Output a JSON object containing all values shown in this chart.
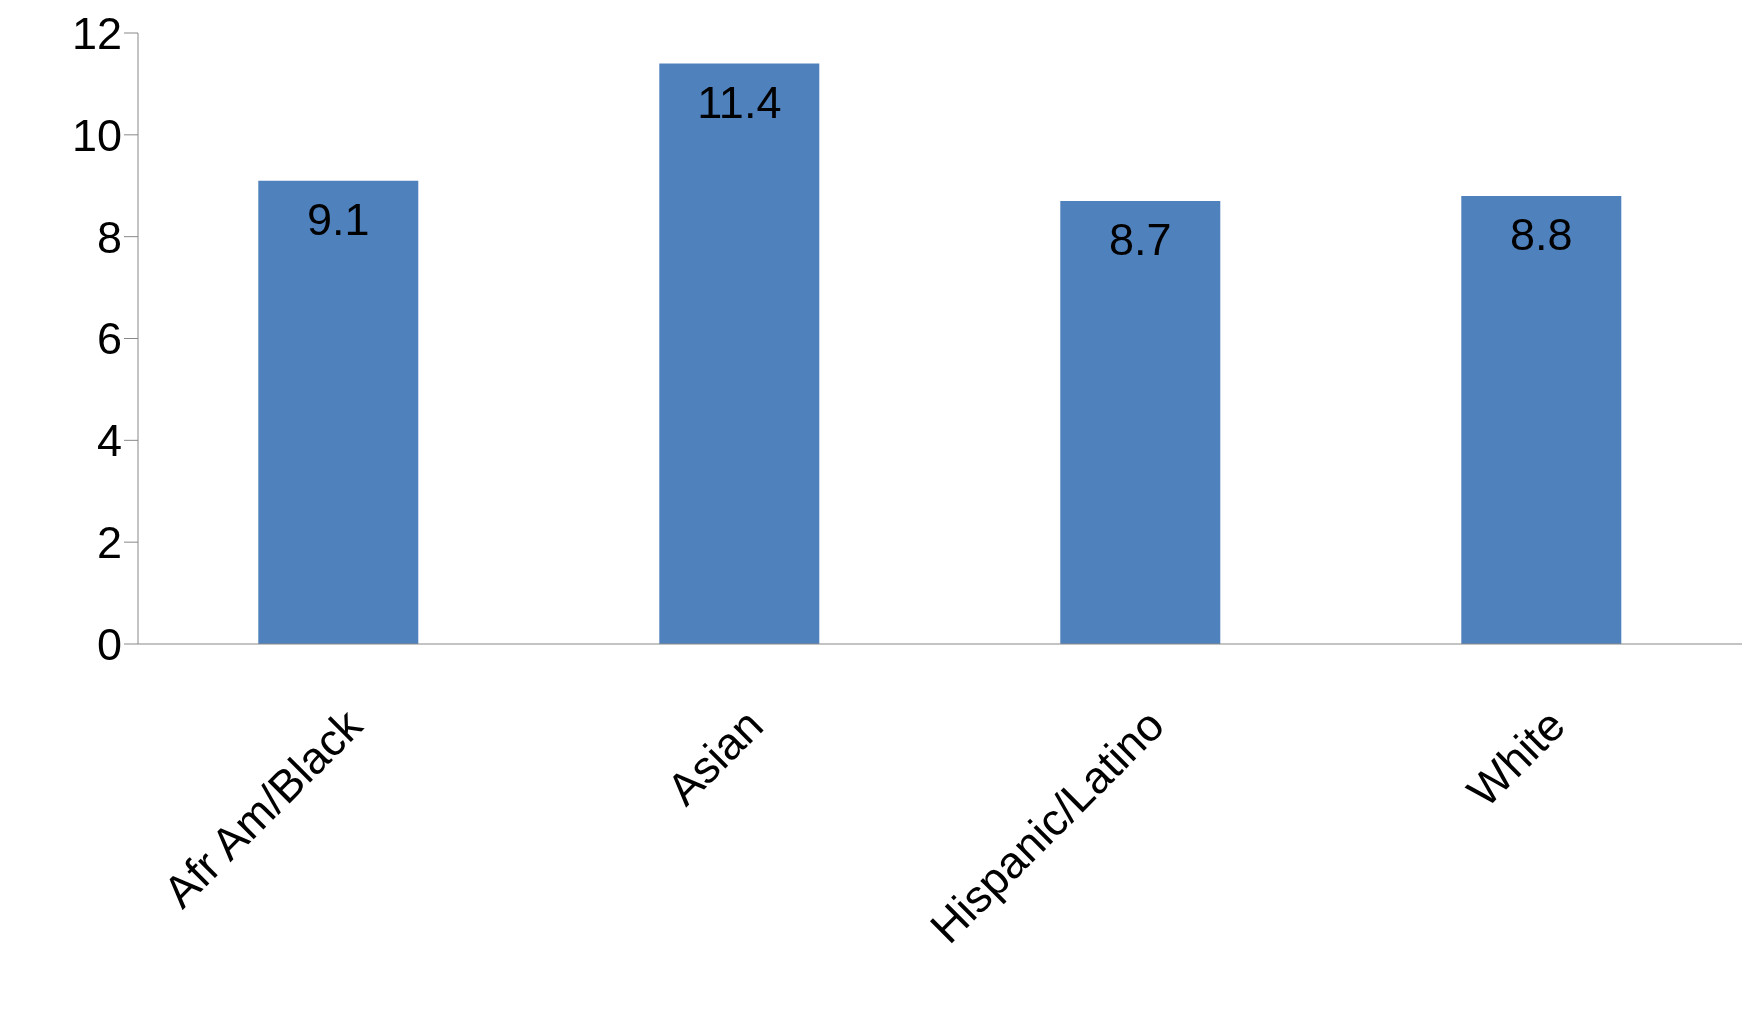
{
  "chart_data": {
    "type": "bar",
    "categories": [
      "Afr Am/Black",
      "Asian",
      "Hispanic/Latino",
      "White"
    ],
    "values": [
      9.1,
      11.4,
      8.7,
      8.8
    ],
    "color": "#4f81bd",
    "ylim": [
      0,
      12
    ],
    "yticks": [
      0,
      2,
      4,
      6,
      8,
      10,
      12
    ],
    "grid": false,
    "data_labels": true
  }
}
